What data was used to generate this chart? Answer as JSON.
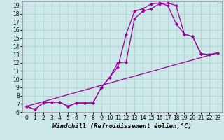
{
  "xlabel": "Windchill (Refroidissement éolien,°C)",
  "bg_color": "#cce8e8",
  "grid_color": "#aacccc",
  "line_color": "#990099",
  "xlim": [
    -0.5,
    23.5
  ],
  "ylim": [
    6,
    19.5
  ],
  "xticks": [
    0,
    1,
    2,
    3,
    4,
    5,
    6,
    7,
    8,
    9,
    10,
    11,
    12,
    13,
    14,
    15,
    16,
    17,
    18,
    19,
    20,
    21,
    22,
    23
  ],
  "yticks": [
    6,
    7,
    8,
    9,
    10,
    11,
    12,
    13,
    14,
    15,
    16,
    17,
    18,
    19
  ],
  "line1_x": [
    0,
    1,
    2,
    3,
    4,
    5,
    6,
    7,
    8,
    9,
    10,
    11,
    12,
    13,
    14,
    15,
    16,
    17,
    18,
    19,
    20,
    21,
    22,
    23
  ],
  "line1_y": [
    6.7,
    6.3,
    7.1,
    7.2,
    7.2,
    6.7,
    7.1,
    7.1,
    7.1,
    9.0,
    10.2,
    12.0,
    12.1,
    17.4,
    18.3,
    18.6,
    19.2,
    19.3,
    19.0,
    15.5,
    15.2,
    13.1,
    13.0,
    13.2
  ],
  "line2_x": [
    0,
    1,
    2,
    3,
    4,
    5,
    6,
    7,
    8,
    9,
    10,
    11,
    12,
    13,
    14,
    15,
    16,
    17,
    18,
    19,
    20,
    21,
    22,
    23
  ],
  "line2_y": [
    6.7,
    6.3,
    7.1,
    7.2,
    7.2,
    6.7,
    7.1,
    7.1,
    7.1,
    9.0,
    10.2,
    11.5,
    15.5,
    18.3,
    18.6,
    19.2,
    19.3,
    19.0,
    16.8,
    15.5,
    15.2,
    13.1,
    13.0,
    13.2
  ],
  "line3_x": [
    0,
    23
  ],
  "line3_y": [
    6.7,
    13.2
  ],
  "marker_size": 2.5,
  "line_width": 0.9,
  "tick_fontsize": 5.5,
  "xlabel_fontsize": 6.5
}
